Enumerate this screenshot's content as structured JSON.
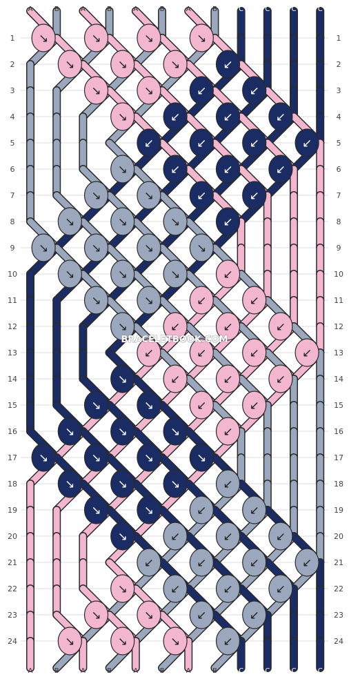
{
  "watermark": "BRACELETBOOK.COM",
  "colors": {
    "A": "#f2b6cf",
    "B": "#9ba7bd",
    "C": "#1a2c63",
    "stroke": "#2a2a2a",
    "grid": "#dcdcdc",
    "row_label": "#444444"
  },
  "top_strings": [
    "A",
    "B",
    "A",
    "B",
    "A",
    "B",
    "A",
    "B",
    "C",
    "C",
    "C",
    "C"
  ],
  "bottom_strings": [
    "A",
    "B",
    "A",
    "B",
    "A",
    "B",
    "A",
    "B",
    "C",
    "C",
    "C",
    "C"
  ],
  "rows": [
    "1",
    "2",
    "3",
    "4",
    "5",
    "6",
    "7",
    "8",
    "9",
    "10",
    "11",
    "12",
    "13",
    "14",
    "15",
    "16",
    "17",
    "18",
    "19",
    "20",
    "21",
    "22",
    "23",
    "24"
  ],
  "knots": [
    {
      "row": 1,
      "col": 1,
      "color": "A",
      "arrow": "↘"
    },
    {
      "row": 1,
      "col": 3,
      "color": "A",
      "arrow": "↘"
    },
    {
      "row": 1,
      "col": 5,
      "color": "A",
      "arrow": "↘"
    },
    {
      "row": 1,
      "col": 7,
      "color": "A",
      "arrow": "↘"
    },
    {
      "row": 2,
      "col": 2,
      "color": "A",
      "arrow": "↘"
    },
    {
      "row": 2,
      "col": 4,
      "color": "A",
      "arrow": "↘"
    },
    {
      "row": 2,
      "col": 6,
      "color": "A",
      "arrow": "↘"
    },
    {
      "row": 2,
      "col": 8,
      "color": "C",
      "arrow": "↙"
    },
    {
      "row": 3,
      "col": 3,
      "color": "A",
      "arrow": "↘"
    },
    {
      "row": 3,
      "col": 5,
      "color": "A",
      "arrow": "↘"
    },
    {
      "row": 3,
      "col": 7,
      "color": "C",
      "arrow": "↙"
    },
    {
      "row": 3,
      "col": 9,
      "color": "C",
      "arrow": "↙"
    },
    {
      "row": 4,
      "col": 4,
      "color": "A",
      "arrow": "↘"
    },
    {
      "row": 4,
      "col": 6,
      "color": "C",
      "arrow": "↙"
    },
    {
      "row": 4,
      "col": 8,
      "color": "C",
      "arrow": "↙"
    },
    {
      "row": 4,
      "col": 10,
      "color": "C",
      "arrow": "↙"
    },
    {
      "row": 5,
      "col": 5,
      "color": "C",
      "arrow": "↙"
    },
    {
      "row": 5,
      "col": 7,
      "color": "C",
      "arrow": "↙"
    },
    {
      "row": 5,
      "col": 9,
      "color": "C",
      "arrow": "↙"
    },
    {
      "row": 5,
      "col": 11,
      "color": "C",
      "arrow": "↙"
    },
    {
      "row": 6,
      "col": 4,
      "color": "B",
      "arrow": "↘"
    },
    {
      "row": 6,
      "col": 6,
      "color": "C",
      "arrow": "↙"
    },
    {
      "row": 6,
      "col": 8,
      "color": "C",
      "arrow": "↙"
    },
    {
      "row": 6,
      "col": 10,
      "color": "C",
      "arrow": "↙"
    },
    {
      "row": 7,
      "col": 3,
      "color": "B",
      "arrow": "↘"
    },
    {
      "row": 7,
      "col": 5,
      "color": "B",
      "arrow": "↘"
    },
    {
      "row": 7,
      "col": 7,
      "color": "C",
      "arrow": "↙"
    },
    {
      "row": 7,
      "col": 9,
      "color": "C",
      "arrow": "↙"
    },
    {
      "row": 8,
      "col": 2,
      "color": "B",
      "arrow": "↘"
    },
    {
      "row": 8,
      "col": 4,
      "color": "B",
      "arrow": "↘"
    },
    {
      "row": 8,
      "col": 6,
      "color": "B",
      "arrow": "↘"
    },
    {
      "row": 8,
      "col": 8,
      "color": "C",
      "arrow": "↙"
    },
    {
      "row": 9,
      "col": 1,
      "color": "B",
      "arrow": "↘"
    },
    {
      "row": 9,
      "col": 3,
      "color": "B",
      "arrow": "↘"
    },
    {
      "row": 9,
      "col": 5,
      "color": "B",
      "arrow": "↘"
    },
    {
      "row": 9,
      "col": 7,
      "color": "B",
      "arrow": "↘"
    },
    {
      "row": 10,
      "col": 2,
      "color": "B",
      "arrow": "↘"
    },
    {
      "row": 10,
      "col": 4,
      "color": "B",
      "arrow": "↘"
    },
    {
      "row": 10,
      "col": 6,
      "color": "B",
      "arrow": "↘"
    },
    {
      "row": 10,
      "col": 8,
      "color": "A",
      "arrow": "↙"
    },
    {
      "row": 11,
      "col": 3,
      "color": "B",
      "arrow": "↘"
    },
    {
      "row": 11,
      "col": 5,
      "color": "B",
      "arrow": "↘"
    },
    {
      "row": 11,
      "col": 7,
      "color": "A",
      "arrow": "↙"
    },
    {
      "row": 11,
      "col": 9,
      "color": "A",
      "arrow": "↙"
    },
    {
      "row": 12,
      "col": 4,
      "color": "B",
      "arrow": "↘"
    },
    {
      "row": 12,
      "col": 6,
      "color": "A",
      "arrow": "↙"
    },
    {
      "row": 12,
      "col": 8,
      "color": "A",
      "arrow": "↙"
    },
    {
      "row": 12,
      "col": 10,
      "color": "A",
      "arrow": "↙"
    },
    {
      "row": 13,
      "col": 5,
      "color": "A",
      "arrow": "↙"
    },
    {
      "row": 13,
      "col": 7,
      "color": "A",
      "arrow": "↙"
    },
    {
      "row": 13,
      "col": 9,
      "color": "A",
      "arrow": "↙"
    },
    {
      "row": 13,
      "col": 11,
      "color": "A",
      "arrow": "↙"
    },
    {
      "row": 14,
      "col": 4,
      "color": "C",
      "arrow": "↘"
    },
    {
      "row": 14,
      "col": 6,
      "color": "A",
      "arrow": "↙"
    },
    {
      "row": 14,
      "col": 8,
      "color": "A",
      "arrow": "↙"
    },
    {
      "row": 14,
      "col": 10,
      "color": "A",
      "arrow": "↙"
    },
    {
      "row": 15,
      "col": 3,
      "color": "C",
      "arrow": "↘"
    },
    {
      "row": 15,
      "col": 5,
      "color": "C",
      "arrow": "↘"
    },
    {
      "row": 15,
      "col": 7,
      "color": "A",
      "arrow": "↙"
    },
    {
      "row": 15,
      "col": 9,
      "color": "A",
      "arrow": "↙"
    },
    {
      "row": 16,
      "col": 2,
      "color": "C",
      "arrow": "↘"
    },
    {
      "row": 16,
      "col": 4,
      "color": "C",
      "arrow": "↘"
    },
    {
      "row": 16,
      "col": 6,
      "color": "C",
      "arrow": "↘"
    },
    {
      "row": 16,
      "col": 8,
      "color": "A",
      "arrow": "↙"
    },
    {
      "row": 17,
      "col": 1,
      "color": "C",
      "arrow": "↘"
    },
    {
      "row": 17,
      "col": 3,
      "color": "C",
      "arrow": "↘"
    },
    {
      "row": 17,
      "col": 5,
      "color": "C",
      "arrow": "↘"
    },
    {
      "row": 17,
      "col": 7,
      "color": "C",
      "arrow": "↘"
    },
    {
      "row": 18,
      "col": 2,
      "color": "C",
      "arrow": "↘"
    },
    {
      "row": 18,
      "col": 4,
      "color": "C",
      "arrow": "↘"
    },
    {
      "row": 18,
      "col": 6,
      "color": "C",
      "arrow": "↘"
    },
    {
      "row": 18,
      "col": 8,
      "color": "B",
      "arrow": "↙"
    },
    {
      "row": 19,
      "col": 3,
      "color": "C",
      "arrow": "↘"
    },
    {
      "row": 19,
      "col": 5,
      "color": "C",
      "arrow": "↘"
    },
    {
      "row": 19,
      "col": 7,
      "color": "B",
      "arrow": "↙"
    },
    {
      "row": 19,
      "col": 9,
      "color": "B",
      "arrow": "↙"
    },
    {
      "row": 20,
      "col": 4,
      "color": "C",
      "arrow": "↘"
    },
    {
      "row": 20,
      "col": 6,
      "color": "B",
      "arrow": "↙"
    },
    {
      "row": 20,
      "col": 8,
      "color": "B",
      "arrow": "↙"
    },
    {
      "row": 20,
      "col": 10,
      "color": "B",
      "arrow": "↙"
    },
    {
      "row": 21,
      "col": 5,
      "color": "B",
      "arrow": "↙"
    },
    {
      "row": 21,
      "col": 7,
      "color": "B",
      "arrow": "↙"
    },
    {
      "row": 21,
      "col": 9,
      "color": "B",
      "arrow": "↙"
    },
    {
      "row": 21,
      "col": 11,
      "color": "B",
      "arrow": "↙"
    },
    {
      "row": 22,
      "col": 4,
      "color": "A",
      "arrow": "↘"
    },
    {
      "row": 22,
      "col": 6,
      "color": "B",
      "arrow": "↙"
    },
    {
      "row": 22,
      "col": 8,
      "color": "B",
      "arrow": "↙"
    },
    {
      "row": 22,
      "col": 10,
      "color": "B",
      "arrow": "↙"
    },
    {
      "row": 23,
      "col": 3,
      "color": "A",
      "arrow": "↘"
    },
    {
      "row": 23,
      "col": 5,
      "color": "A",
      "arrow": "↘"
    },
    {
      "row": 23,
      "col": 7,
      "color": "B",
      "arrow": "↙"
    },
    {
      "row": 23,
      "col": 9,
      "color": "B",
      "arrow": "↙"
    },
    {
      "row": 24,
      "col": 2,
      "color": "A",
      "arrow": "↘"
    },
    {
      "row": 24,
      "col": 4,
      "color": "A",
      "arrow": "↘"
    },
    {
      "row": 24,
      "col": 6,
      "color": "A",
      "arrow": "↘"
    },
    {
      "row": 24,
      "col": 8,
      "color": "B",
      "arrow": "↙"
    }
  ]
}
